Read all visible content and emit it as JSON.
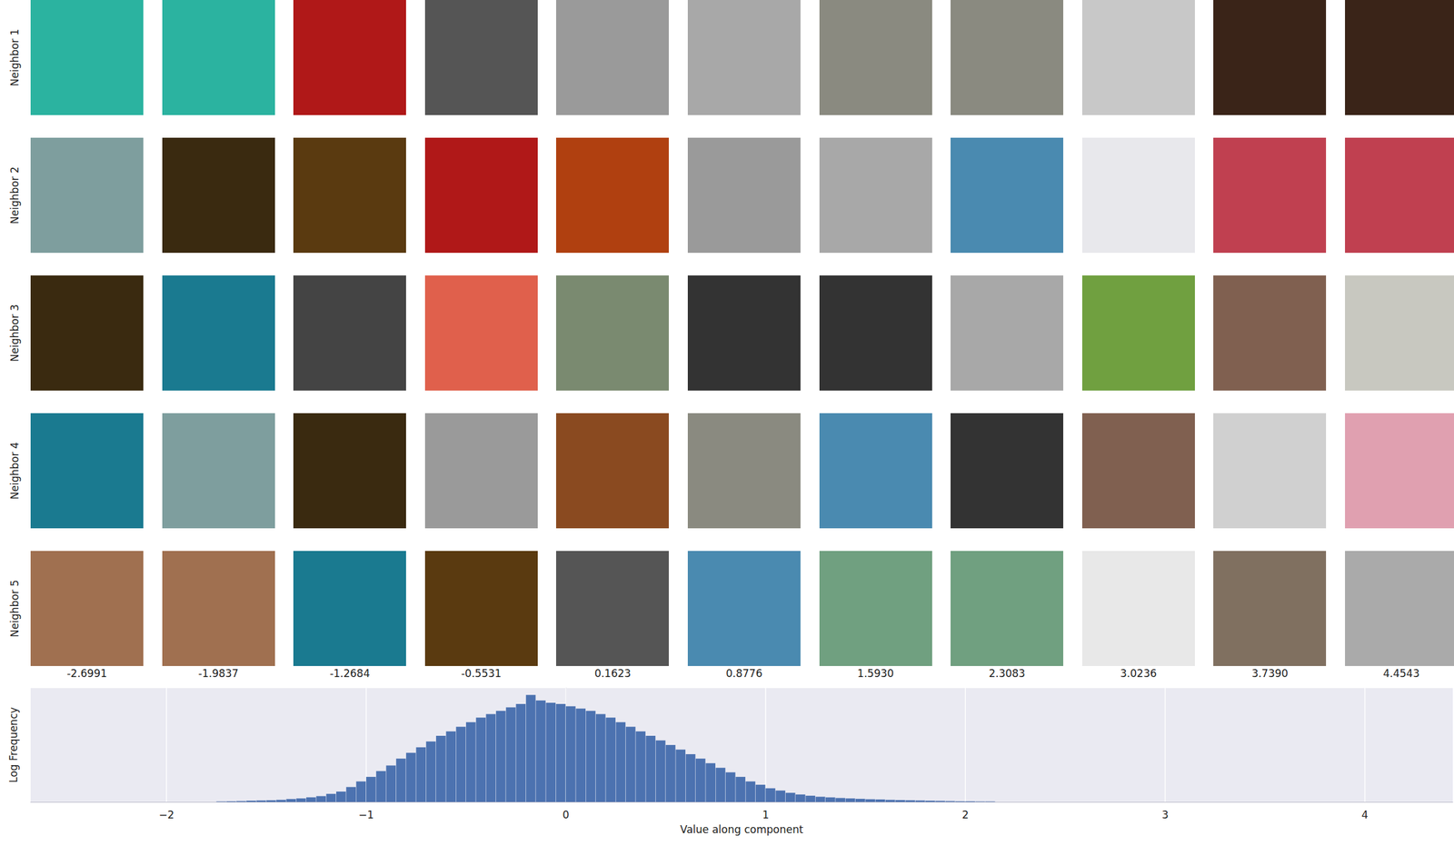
{
  "chart_data": {
    "type": "histogram",
    "row_labels": [
      "Neighbor 1",
      "Neighbor 2",
      "Neighbor 3",
      "Neighbor 4",
      "Neighbor 5"
    ],
    "column_values": [
      -2.6991,
      -1.9837,
      -1.2684,
      -0.5531,
      0.1623,
      0.8776,
      {
        "value": 1.593,
        "label": "1.5930"
      },
      2.3083,
      3.0236,
      {
        "value": 3.739,
        "label": "3.7390"
      },
      4.4543
    ],
    "x_label": "Value along component",
    "y_label": "Log Frequency",
    "bins": [
      -1.75,
      -1.7,
      -1.65,
      -1.6,
      -1.55,
      -1.5,
      -1.45,
      -1.4,
      -1.35,
      -1.3,
      -1.25,
      -1.2,
      -1.15,
      -1.1,
      -1.05,
      -1.0,
      -0.95,
      -0.9,
      -0.85,
      -0.8,
      -0.75,
      -0.7,
      -0.65,
      -0.6,
      -0.55,
      -0.5,
      -0.45,
      -0.4,
      -0.35,
      -0.3,
      -0.25,
      -0.2,
      -0.15,
      -0.1,
      -0.05,
      0,
      0.05,
      0.1,
      0.15,
      0.2,
      0.25,
      0.3,
      0.35,
      0.4,
      0.45,
      0.5,
      0.55,
      0.6,
      0.65,
      0.7,
      0.75,
      0.8,
      0.85,
      0.9,
      0.95,
      1.0,
      1.05,
      1.1,
      1.15,
      1.2,
      1.25,
      1.3,
      1.35,
      1.4,
      1.45,
      1.5,
      1.55,
      1.6,
      1.65,
      1.7,
      1.75,
      1.8,
      1.85,
      1.9,
      1.95,
      2.0,
      2.05,
      2.1,
      2.15
    ],
    "values": [
      0.02,
      0.03,
      0.04,
      0.06,
      0.07,
      0.08,
      0.1,
      0.14,
      0.17,
      0.22,
      0.28,
      0.39,
      0.5,
      0.72,
      0.99,
      1.21,
      1.49,
      1.76,
      2.09,
      2.37,
      2.64,
      2.92,
      3.19,
      3.41,
      3.63,
      3.85,
      4.07,
      4.24,
      4.4,
      4.57,
      4.73,
      5.17,
      4.9,
      4.79,
      4.73,
      4.62,
      4.51,
      4.4,
      4.24,
      4.07,
      3.85,
      3.63,
      3.41,
      3.19,
      2.97,
      2.75,
      2.53,
      2.31,
      2.09,
      1.87,
      1.65,
      1.43,
      1.21,
      0.99,
      0.83,
      0.66,
      0.55,
      0.44,
      0.36,
      0.3,
      0.25,
      0.22,
      0.19,
      0.17,
      0.15,
      0.13,
      0.12,
      0.1,
      0.09,
      0.08,
      0.07,
      0.06,
      0.05,
      0.04,
      0.03,
      0.03,
      0.02,
      0.02
    ],
    "color": "#4c72b0",
    "xlim": [
      -2.68,
      4.44
    ],
    "xticks": [
      {
        "value": -2,
        "label": "−2"
      },
      {
        "value": -1,
        "label": "−1"
      },
      0,
      1,
      2,
      3,
      4
    ],
    "ylim": [
      0,
      5.5
    ],
    "yticks": [],
    "grid": true,
    "tick_labels": "x"
  }
}
